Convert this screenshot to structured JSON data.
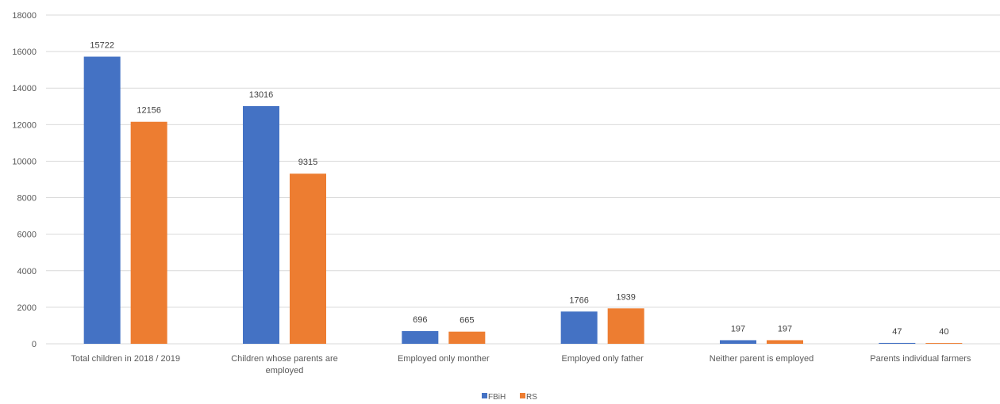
{
  "chart_data": {
    "type": "bar",
    "title": "",
    "xlabel": "",
    "ylabel": "",
    "ylim": [
      0,
      18000
    ],
    "yticks": [
      0,
      2000,
      4000,
      6000,
      8000,
      10000,
      12000,
      14000,
      16000,
      18000
    ],
    "grid": true,
    "legend_position": "bottom",
    "categories": [
      [
        "Total children in 2018 / 2019"
      ],
      [
        "Children whose parents are",
        "employed"
      ],
      [
        "Employed only monther"
      ],
      [
        "Employed only father"
      ],
      [
        "Neither parent is employed"
      ],
      [
        "Parents individual farmers"
      ]
    ],
    "series": [
      {
        "name": "FBiH",
        "color": "#4472c4",
        "values": [
          15722,
          13016,
          696,
          1766,
          197,
          47
        ]
      },
      {
        "name": "RS",
        "color": "#ed7d31",
        "values": [
          12156,
          9315,
          665,
          1939,
          197,
          40
        ]
      }
    ]
  }
}
